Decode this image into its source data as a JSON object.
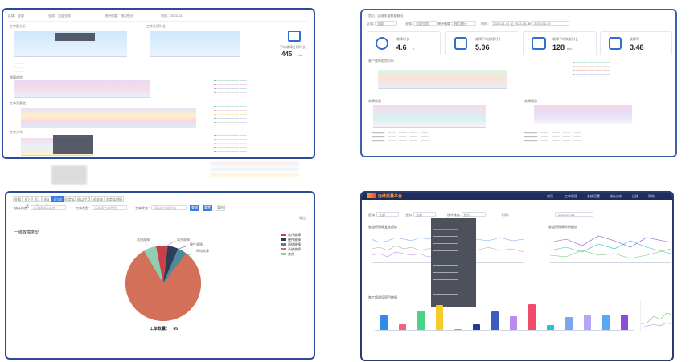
{
  "panel_bottom_left": {
    "tabs": [
      "全部",
      "近7天",
      "近1月",
      "近3月",
      "近1年",
      "自定义",
      "近12个月",
      "近半年",
      "自定义时间"
    ],
    "active_tab_index": 4,
    "filters": [
      {
        "label": "统计维度：",
        "value": "请选择统计维度"
      },
      {
        "label": "工单类型：",
        "value": "请选择工单类型"
      },
      {
        "label": "工单状态：",
        "value": "请选择工单状态"
      }
    ],
    "query_label": "查询",
    "reset_label": "重置",
    "export_label": "导出",
    "corner_label": "导出",
    "chart_title": "一级故障类型",
    "pie_center_label": "工单数量：",
    "pie_center_value": "45",
    "slice_labels": [
      "软件故障",
      "硬件故障",
      "网络故障",
      "其他故障"
    ],
    "legend": [
      "软件故障",
      "硬件故障",
      "网络故障",
      "系统故障",
      "其他"
    ],
    "colors": [
      "#d2705a",
      "#8fcfb1",
      "#c9404a",
      "#2f3c55",
      "#4a8c9c"
    ]
  },
  "panel_top_right": {
    "breadcrumb": "首页 / 运维质量数据概况",
    "filters": [
      {
        "label": "区域：",
        "value": "全部"
      },
      {
        "label": "业务：",
        "value": "全部业务"
      },
      {
        "label": "统计维度：",
        "value": "按月统计"
      },
      {
        "label": "时间：",
        "value": "2023-01-01 至 2023-06-30"
      }
    ],
    "date_value": "2023-06-30",
    "kpis": [
      {
        "label": "故障时长",
        "value": "4.6",
        "unit": "h"
      },
      {
        "label": "故障平均处理时长",
        "value": "5.06",
        "unit": ""
      },
      {
        "label": "故障平均恢复时长",
        "value": "128",
        "unit": "min"
      },
      {
        "label": "故障率",
        "value": "3.48",
        "unit": ""
      }
    ],
    "section1": "客户故障趋势分析",
    "section2": "故障数量",
    "section3": "故障级别"
  },
  "panel_top_left": {
    "header_items": [
      "区域：全部",
      "业务：全部业务",
      "统计维度：按月统计",
      "时间：2023-01"
    ],
    "kpi_label": "平均故障处理时长",
    "kpi_value": "445",
    "kpi_unit": "min",
    "sections": [
      "工单量分析",
      "工单处理时长",
      "故障趋势",
      "工单满意度",
      "工单分布"
    ]
  },
  "panel_bottom_right": {
    "brand": "运维质量平台",
    "menu": [
      "首页",
      "工单管理",
      "系统设置",
      "统计分析",
      "运维",
      "帮助"
    ],
    "filters": [
      {
        "label": "区域：",
        "value": "全部"
      },
      {
        "label": "业务：",
        "value": "全部"
      },
      {
        "label": "统计维度：",
        "value": "按月"
      },
      {
        "label": "时间：",
        "value": "2023-01-01"
      }
    ],
    "chart1_title": "各运行指标变化趋势",
    "chart2_title": "各运行指标分析趋势",
    "bar_title": "各工程建设项目数量",
    "bar_values": [
      16,
      6,
      21,
      27,
      1,
      6,
      20,
      15,
      28,
      5,
      14,
      17,
      17,
      17
    ],
    "bar_colors": [
      "#2f8be8",
      "#f2607a",
      "#4bd18a",
      "#f6cc2a",
      "#9aa0a8",
      "#283a8a",
      "#3d5cc0",
      "#b98af0",
      "#f24a6a",
      "#26c1c9",
      "#7aa7ee",
      "#b7a4f5",
      "#5aa8f2",
      "#8a4fd8"
    ]
  }
}
